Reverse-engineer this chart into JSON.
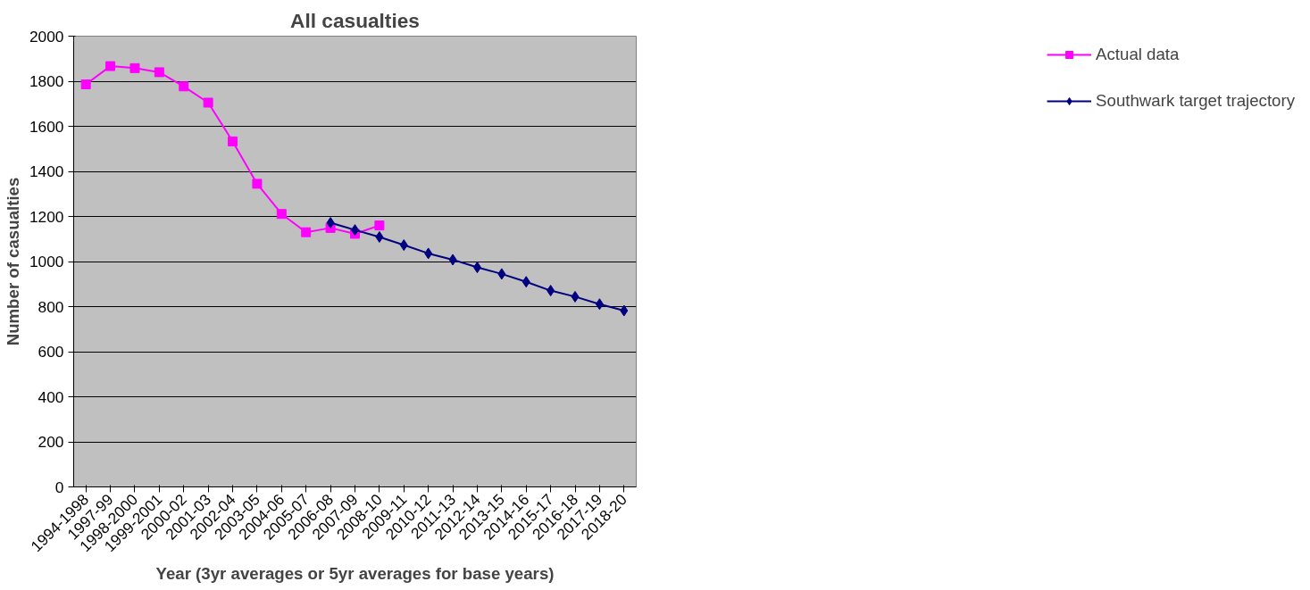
{
  "chart_data": {
    "type": "line",
    "title": "All casualties",
    "xlabel": "Year (3yr averages or 5yr averages for base years)",
    "ylabel": "Number of casualties",
    "categories": [
      "1994-1998",
      "1997-99",
      "1998-2000",
      "1999-2001",
      "2000-02",
      "2001-03",
      "2002-04",
      "2003-05",
      "2004-06",
      "2005-07",
      "2006-08",
      "2007-09",
      "2008-10",
      "2009-11",
      "2010-12",
      "2011-13",
      "2012-14",
      "2013-15",
      "2014-16",
      "2015-17",
      "2016-18",
      "2017-19",
      "2018-20"
    ],
    "series": [
      {
        "name": "Actual data",
        "color": "#ff00ff",
        "marker": "square",
        "values": [
          1786,
          1867,
          1858,
          1840,
          1777,
          1705,
          1533,
          1345,
          1211,
          1130,
          1149,
          1123,
          1160,
          null,
          null,
          null,
          null,
          null,
          null,
          null,
          null,
          null,
          null
        ]
      },
      {
        "name": "Southwark target trajectory",
        "color": "#000080",
        "marker": "diamond",
        "values": [
          null,
          null,
          null,
          null,
          null,
          null,
          null,
          null,
          null,
          null,
          1172,
          1140,
          1109,
          1073,
          1036,
          1008,
          974,
          945,
          910,
          871,
          844,
          811,
          782
        ]
      }
    ],
    "ylim": [
      0,
      2000
    ],
    "yticks": [
      0,
      200,
      400,
      600,
      800,
      1000,
      1200,
      1400,
      1600,
      1800,
      2000
    ],
    "grid": "y",
    "legend": "right",
    "line_style": "solid"
  }
}
